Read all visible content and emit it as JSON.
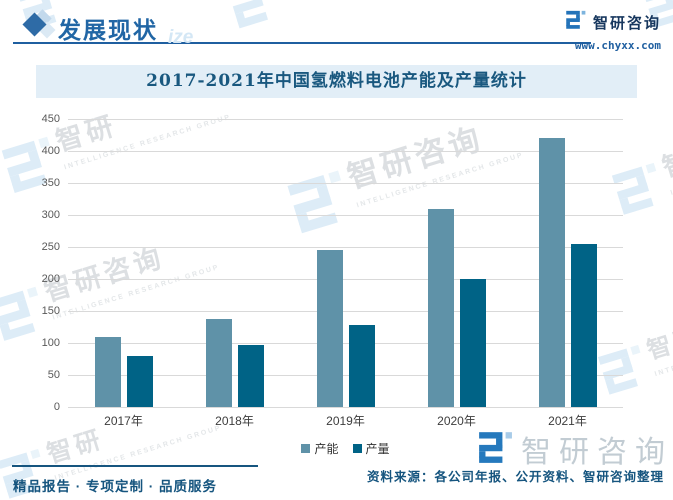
{
  "header": {
    "title": "发展现状",
    "watermark_fragment": "ize",
    "brand_name": "智研咨询",
    "brand_url": "www.chyxx.com"
  },
  "chart_data": {
    "type": "bar",
    "title": "2017-2021年中国氢燃料电池产能及产量统计",
    "categories": [
      "2017年",
      "2018年",
      "2019年",
      "2020年",
      "2021年"
    ],
    "series": [
      {
        "name": "产能",
        "color": "#5f92a8",
        "values": [
          110,
          138,
          245,
          310,
          420
        ]
      },
      {
        "name": "产量",
        "color": "#006386",
        "values": [
          80,
          97,
          128,
          200,
          255
        ]
      }
    ],
    "ylim": [
      0,
      450
    ],
    "ytick_step": 50,
    "grid": true,
    "legend_position": "bottom"
  },
  "watermark": {
    "text": "智研咨询",
    "short_text": "智研",
    "subtext": "INTELLIGENCE RESEARCH GROUP"
  },
  "footer": {
    "tagline": "精品报告 · 专项定制 · 品质服务",
    "source": "资料来源：各公司年报、公开资料、智研咨询整理",
    "brand_watermark": "智研咨询"
  },
  "colors": {
    "accent_blue": "#2166a5",
    "title_band_bg": "#e2eef7",
    "logo_blue": "#2373b9",
    "gridline": "#d9d9d9"
  }
}
